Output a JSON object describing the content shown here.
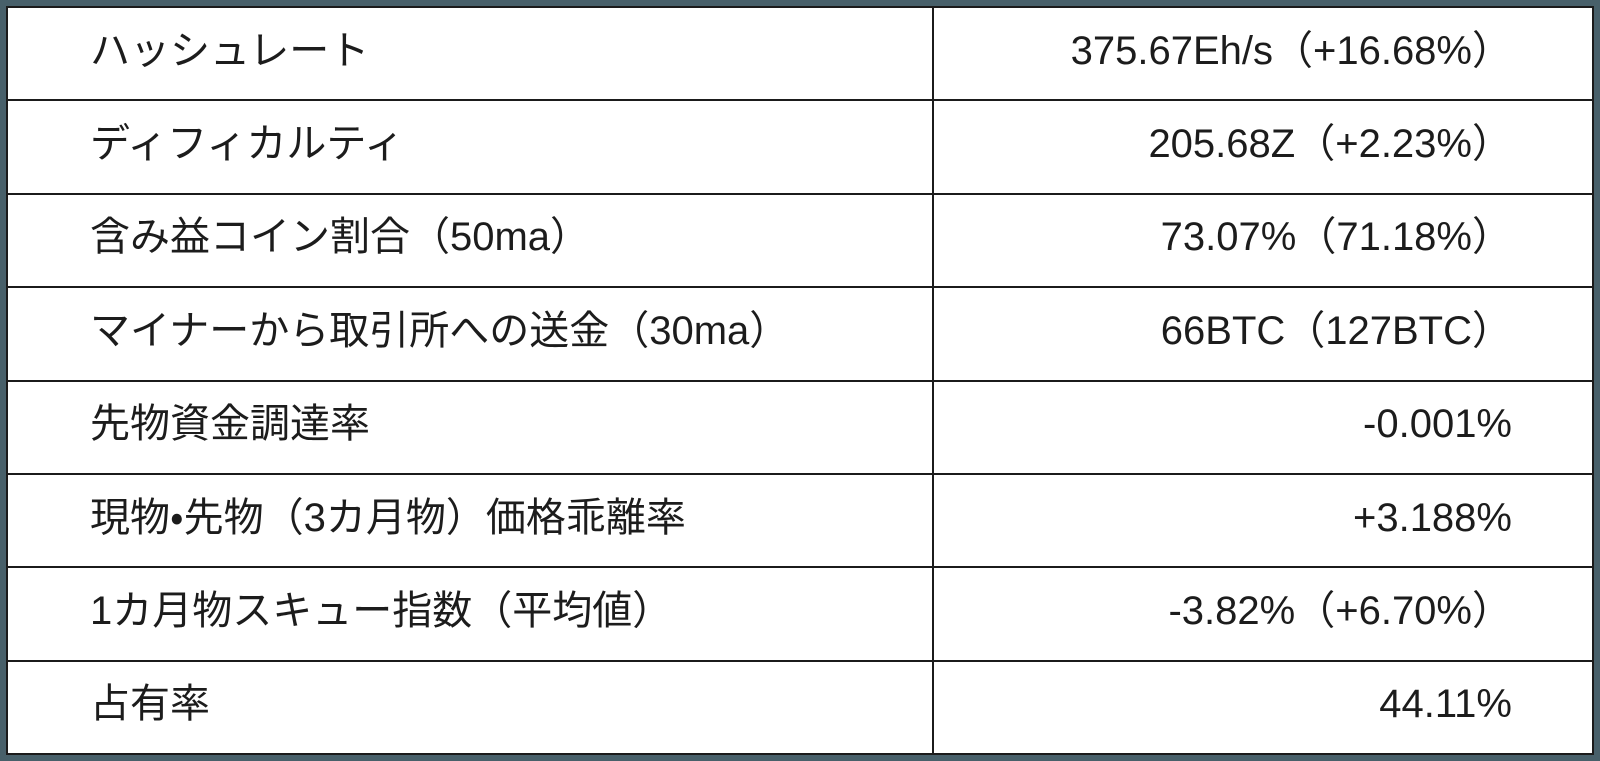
{
  "colors": {
    "frame": "#48606a",
    "grid": "#1b1b1b",
    "cell_background": "#ffffff",
    "text": "#1c1c1c"
  },
  "table": {
    "rows": [
      {
        "label": "ハッシュレート",
        "value": "375.67Eh/s（+16.68%）"
      },
      {
        "label": "ディフィカルティ",
        "value": "205.68Z（+2.23%）"
      },
      {
        "label": "含み益コイン割合（50ma）",
        "value": "73.07%（71.18%）"
      },
      {
        "label": "マイナーから取引所への送金（30ma）",
        "value": "66BTC（127BTC）"
      },
      {
        "label": "先物資金調達率",
        "value": "-0.001%"
      },
      {
        "label": "現物・先物（3カ月物）価格乖離率",
        "value": "+3.188%"
      },
      {
        "label": "1カ月物スキュー指数（平均値）",
        "value": "-3.82%（+6.70%）"
      },
      {
        "label": "占有率",
        "value": "44.11%"
      }
    ]
  },
  "chart_data": {
    "type": "table",
    "rows": [
      [
        "ハッシュレート",
        "375.67Eh/s（+16.68%）"
      ],
      [
        "ディフィカルティ",
        "205.68Z（+2.23%）"
      ],
      [
        "含み益コイン割合（50ma）",
        "73.07%（71.18%）"
      ],
      [
        "マイナーから取引所への送金（30ma）",
        "66BTC（127BTC）"
      ],
      [
        "先物資金調達率",
        "-0.001%"
      ],
      [
        "現物・先物（3カ月物）価格乖離率",
        "+3.188%"
      ],
      [
        "1カ月物スキュー指数（平均値）",
        "-3.82%（+6.70%）"
      ],
      [
        "占有率",
        "44.11%"
      ]
    ],
    "layout": {
      "columns": 2,
      "grid": true,
      "header_row": false,
      "value_alignment": "right"
    }
  }
}
